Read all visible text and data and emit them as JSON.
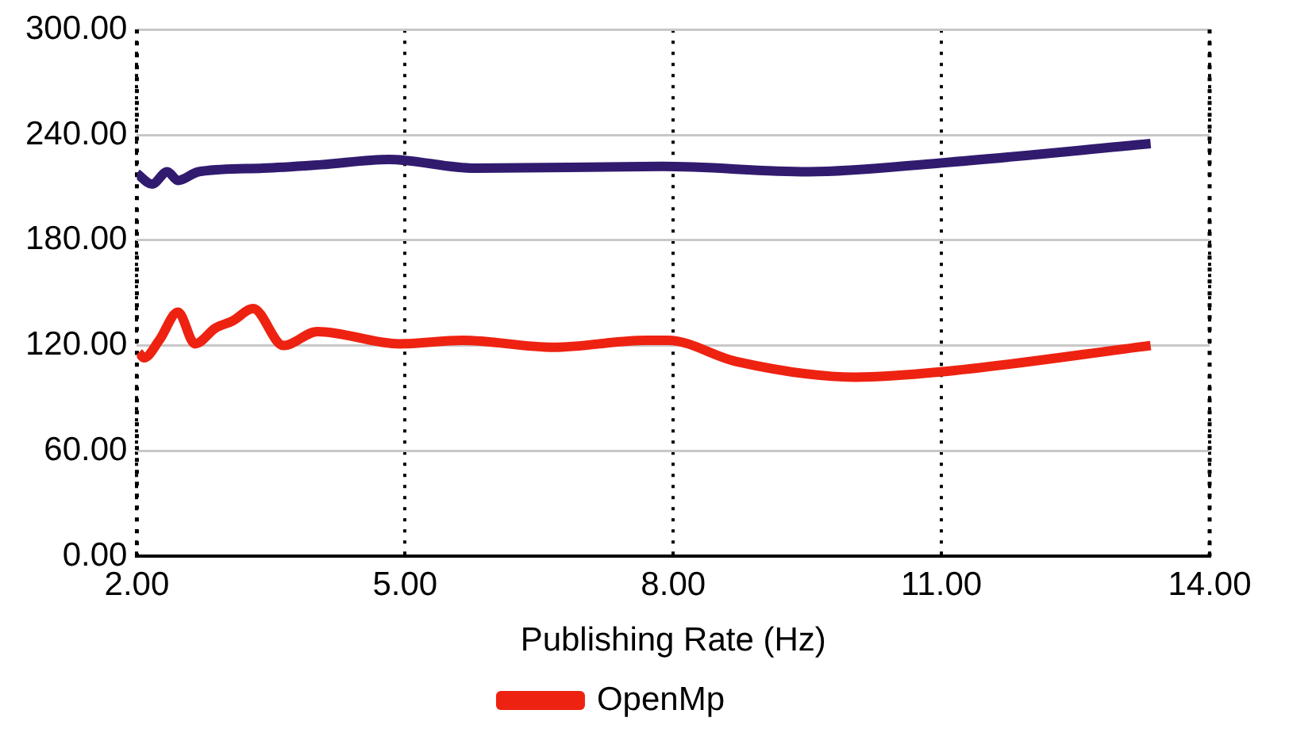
{
  "chart_data": {
    "type": "line",
    "xlabel": "Publishing Rate (Hz)",
    "xlim": [
      2,
      14
    ],
    "xticks": [
      {
        "value": 2,
        "label": "2.00"
      },
      {
        "value": 5,
        "label": "5.00"
      },
      {
        "value": 8,
        "label": "8.00"
      },
      {
        "value": 11,
        "label": "11.00"
      },
      {
        "value": 14,
        "label": "14.00"
      }
    ],
    "ylim": [
      0,
      300
    ],
    "yticks": [
      {
        "value": 0,
        "label": "0.00"
      },
      {
        "value": 60,
        "label": "60.00"
      },
      {
        "value": 120,
        "label": "120.00"
      },
      {
        "value": 180,
        "label": "180.00"
      },
      {
        "value": 240,
        "label": "240.00"
      },
      {
        "value": 300,
        "label": "300.00"
      }
    ],
    "grid": true,
    "legend": "bottom",
    "marker": "none",
    "line_style": "solid",
    "series": [
      {
        "name": "OpenMp",
        "color": "#ee2211",
        "x": [
          2.02,
          2.08,
          2.25,
          2.46,
          2.65,
          2.88,
          3.07,
          3.3,
          3.64,
          4.02,
          4.94,
          5.64,
          6.66,
          7.69,
          7.94,
          8.7,
          10.03,
          10.99,
          13.34
        ],
        "values": [
          116,
          113,
          123,
          139,
          121,
          130,
          134,
          141,
          120,
          128,
          121,
          123,
          119,
          123,
          123,
          111,
          102,
          105,
          120
        ]
      },
      {
        "color": "#311b6f",
        "x": [
          2.0,
          2.17,
          2.34,
          2.46,
          2.69,
          3.41,
          4.06,
          4.82,
          5.78,
          7.88,
          9.52,
          10.99,
          13.34
        ],
        "values": [
          218,
          212,
          219,
          214,
          219,
          221,
          223,
          226,
          221,
          222,
          219,
          224,
          235
        ]
      }
    ]
  }
}
